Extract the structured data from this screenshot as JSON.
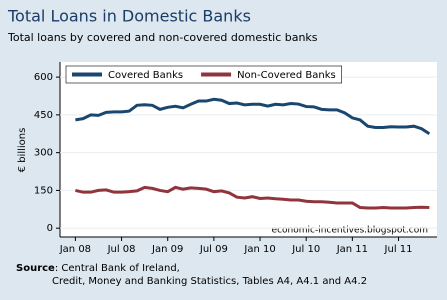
{
  "chart_data": {
    "type": "line",
    "title": "Total Loans in Domestic Banks",
    "subtitle": "Total loans by covered and non-covered domestic banks",
    "y_label": "€ billions",
    "annotation": "economic-incentives.blogspot.com",
    "source_label": "Source",
    "source_lines": [
      ": Central Bank of Ireland,",
      "Credit, Money and Banking Statistics, Tables A4, A4.1 and A4.2"
    ],
    "x": [
      "2008-01",
      "2008-02",
      "2008-03",
      "2008-04",
      "2008-05",
      "2008-06",
      "2008-07",
      "2008-08",
      "2008-09",
      "2008-10",
      "2008-11",
      "2008-12",
      "2009-01",
      "2009-02",
      "2009-03",
      "2009-04",
      "2009-05",
      "2009-06",
      "2009-07",
      "2009-08",
      "2009-09",
      "2009-10",
      "2009-11",
      "2009-12",
      "2010-01",
      "2010-02",
      "2010-03",
      "2010-04",
      "2010-05",
      "2010-06",
      "2010-07",
      "2010-08",
      "2010-09",
      "2010-10",
      "2010-11",
      "2010-12",
      "2011-01",
      "2011-02",
      "2011-03",
      "2011-04",
      "2011-05",
      "2011-06",
      "2011-07",
      "2011-08",
      "2011-09",
      "2011-10",
      "2011-11"
    ],
    "series": [
      {
        "name": "Covered Banks",
        "color": "#1a476f",
        "values": [
          430,
          435,
          450,
          448,
          460,
          462,
          462,
          465,
          488,
          490,
          488,
          472,
          480,
          484,
          478,
          492,
          505,
          505,
          512,
          508,
          495,
          497,
          490,
          492,
          492,
          485,
          492,
          490,
          495,
          493,
          483,
          482,
          472,
          470,
          470,
          458,
          438,
          430,
          405,
          400,
          400,
          403,
          402,
          402,
          405,
          395,
          375
        ]
      },
      {
        "name": "Non-Covered Banks",
        "color": "#90353b",
        "values": [
          150,
          143,
          143,
          150,
          152,
          143,
          143,
          145,
          148,
          162,
          158,
          150,
          145,
          162,
          155,
          160,
          158,
          155,
          145,
          148,
          140,
          123,
          120,
          125,
          118,
          120,
          117,
          115,
          112,
          112,
          107,
          105,
          105,
          103,
          100,
          100,
          100,
          82,
          80,
          80,
          82,
          80,
          80,
          80,
          82,
          83,
          82
        ]
      }
    ],
    "xlim": [
      "2007-11",
      "2011-12"
    ],
    "xticks": [
      {
        "value": "2008-01",
        "label": "Jan 08"
      },
      {
        "value": "2008-07",
        "label": "Jul 08"
      },
      {
        "value": "2009-01",
        "label": "Jan 09"
      },
      {
        "value": "2009-07",
        "label": "Jul 09"
      },
      {
        "value": "2010-01",
        "label": "Jan 10"
      },
      {
        "value": "2010-07",
        "label": "Jul 10"
      },
      {
        "value": "2011-01",
        "label": "Jan 11"
      },
      {
        "value": "2011-07",
        "label": "Jul 11"
      }
    ],
    "ylim": [
      -35,
      660
    ],
    "yticks": [
      0,
      150,
      300,
      450,
      600
    ],
    "grid": true,
    "legend_position": "top"
  }
}
